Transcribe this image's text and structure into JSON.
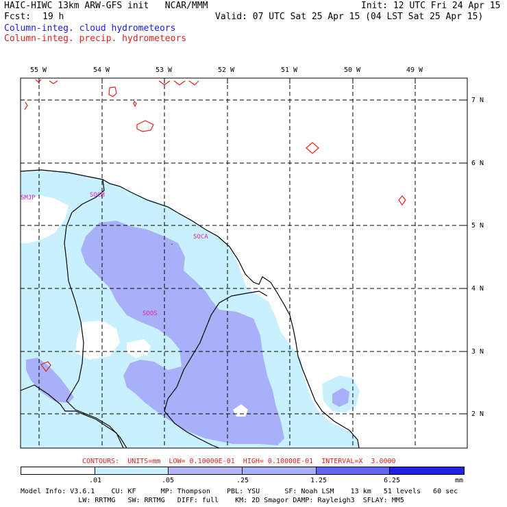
{
  "header": {
    "title_left": "HAIC-HIWC 13km ARW-GFS init   NCAR/MMM",
    "init": "Init: 12 UTC Fri 24 Apr 15",
    "fcst_label": "Fcst:",
    "fcst_value": "19 h",
    "valid": "Valid: 07 UTC Sat 25 Apr 15 (04 LST Sat 25 Apr 15)",
    "field1": "Column-integ. cloud hydrometeors",
    "field2": "Column-integ. precip. hydrometeors",
    "field1_color": "#1a1adf",
    "field2_color": "#e0201a"
  },
  "map": {
    "lon_labels": [
      "55 W",
      "54 W",
      "53 W",
      "52 W",
      "51 W",
      "50 W",
      "49 W"
    ],
    "lat_labels": [
      "7 N",
      "6 N",
      "5 N",
      "4 N",
      "3 N",
      "2 N"
    ],
    "stations": [
      "SMJP",
      "SOCM",
      "SOCA",
      "SOOS"
    ],
    "station_color": "#e020c0",
    "contour_color": "#e0201a"
  },
  "contours_line": "CONTOURS:  UNITS=mm  LOW= 0.10000E-01  HIGH= 0.10000E-01  INTERVAL=X  3.0000",
  "colorbar": {
    "ticks": [
      ".01",
      ".05",
      ".25",
      "1.25",
      "6.25",
      "mm"
    ],
    "colors": [
      "#ffffff",
      "#c8f0ff",
      "#b4b4f4",
      "#a8b0fa",
      "#6464f0",
      "#4848f0",
      "#2020e0"
    ]
  },
  "model_info": {
    "line1": "Model Info: V3.6.1    CU: KF      MP: Thompson    PBL: YSU      SF: Noah LSM    13 km   51 levels   60 sec",
    "line2": "              LW: RRTMG   SW: RRTMG   DIFF: full    KM: 2D Smagor DAMP: Rayleigh3  SFLAY: MM5"
  }
}
